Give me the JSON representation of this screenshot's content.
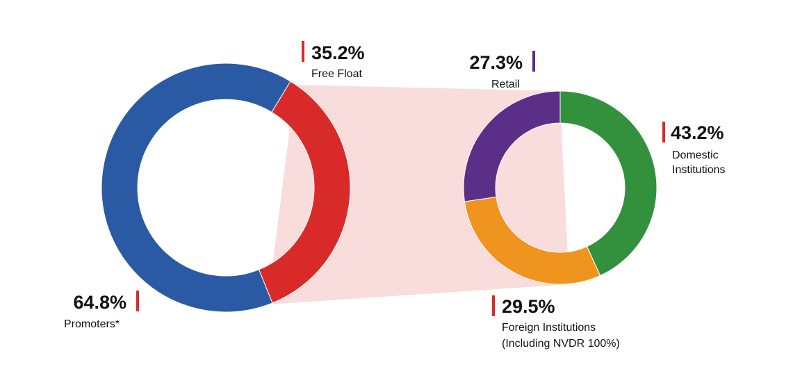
{
  "chart_data": [
    {
      "type": "pie",
      "donut": true,
      "slices": [
        {
          "label": "Promoters*",
          "value": 64.8,
          "display": "64.8%",
          "color": "#2a5aa3"
        },
        {
          "label": "Free Float",
          "value": 35.2,
          "display": "35.2%",
          "color": "#d92a2a"
        }
      ],
      "title": ""
    },
    {
      "type": "pie",
      "donut": true,
      "slices": [
        {
          "label": "Domestic Institutions",
          "label_lines": [
            "Domestic",
            "Institutions"
          ],
          "value": 43.2,
          "display": "43.2%",
          "color": "#33913d"
        },
        {
          "label": "Foreign Institutions (Including NVDR 100%)",
          "label_lines": [
            "Foreign Institutions",
            "(Including NVDR 100%)"
          ],
          "value": 29.5,
          "display": "29.5%",
          "color": "#ef941e"
        },
        {
          "label": "Retail",
          "value": 27.3,
          "display": "27.3%",
          "color": "#5b2e87"
        }
      ],
      "title": ""
    }
  ],
  "colors": {
    "connector": "#f9dcdc",
    "accent_red": "#d92a2a",
    "accent_purple": "#5b2e87"
  }
}
